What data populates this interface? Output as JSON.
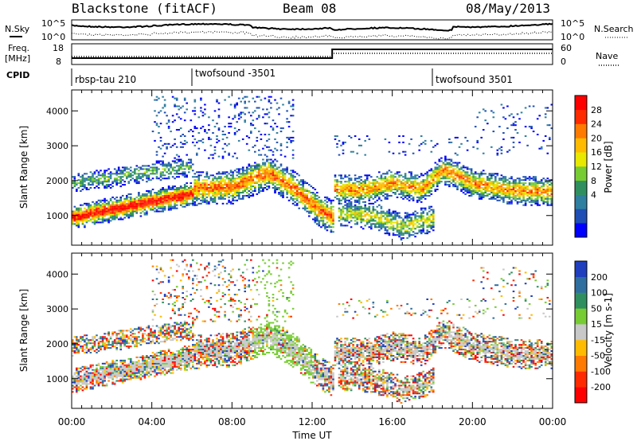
{
  "header": {
    "title": "Blackstone (fitACF)",
    "beam": "Beam 08",
    "date": "08/May/2013"
  },
  "top_panel": {
    "nsky_label": "N.Sky",
    "nsearch_label": "N.Search",
    "freq_label_1": "Freq.",
    "freq_label_2": "[MHz]",
    "nave_label": "Nave",
    "cpid_label": "CPID",
    "noise_ticks_left": [
      "10^5",
      "10^0"
    ],
    "noise_ticks_right": [
      "10^5",
      "10^0"
    ],
    "freq_ticks": [
      "18",
      "8"
    ],
    "nave_ticks": [
      "60",
      "0"
    ],
    "cpid_segments": [
      {
        "label": "rbsp-tau 210",
        "start_hour": 0
      },
      {
        "label": "twofsound -3501",
        "start_hour": 6
      },
      {
        "label": "twofsound 3501",
        "start_hour": 18
      }
    ]
  },
  "chart_data": [
    {
      "type": "heatmap",
      "name": "power",
      "ylabel": "Slant Range [km]",
      "y_ticks": [
        "1000",
        "2000",
        "3000",
        "4000"
      ],
      "ylim": [
        150,
        4600
      ],
      "xlim": [
        0,
        24
      ],
      "colorbar_label": "Power [dB]",
      "colorbar_ticks": [
        "28",
        "24",
        "20",
        "16",
        "12",
        "8",
        "4"
      ],
      "colorbar_colors": [
        "#0000ff",
        "#1f4fb4",
        "#2f7fa0",
        "#2f8f5f",
        "#77cc33",
        "#e8e800",
        "#ffbb00",
        "#ff7a00",
        "#ff2a00",
        "#ff0000"
      ],
      "bands": [
        {
          "t": [
            0.0,
            2.0,
            4.0,
            6.0
          ],
          "r": [
            920,
            1150,
            1380,
            1600
          ],
          "w": 160,
          "level": 0.85
        },
        {
          "t": [
            0.0,
            2.0,
            4.0,
            6.0
          ],
          "r": [
            1900,
            2050,
            2250,
            2350
          ],
          "w": 140,
          "level": 0.35
        },
        {
          "t": [
            6.0,
            8.0,
            9.8,
            11.0,
            12.3,
            13.0
          ],
          "r": [
            1750,
            1800,
            2200,
            1800,
            1150,
            950
          ],
          "w": 220,
          "level": 0.7
        },
        {
          "t": [
            13.0,
            14.5,
            16.0,
            17.5,
            18.5,
            20.0,
            22.0,
            24.0
          ],
          "r": [
            1750,
            1700,
            1900,
            1750,
            2300,
            1900,
            1700,
            1650
          ],
          "w": 190,
          "level": 0.65
        },
        {
          "t": [
            13.2,
            15.0,
            16.5,
            18.0
          ],
          "r": [
            1050,
            950,
            650,
            900
          ],
          "w": 180,
          "level": 0.5
        }
      ]
    },
    {
      "type": "heatmap",
      "name": "velocity",
      "ylabel": "Slant Range [km]",
      "y_ticks": [
        "1000",
        "2000",
        "3000",
        "4000"
      ],
      "ylim": [
        150,
        4600
      ],
      "xlim": [
        0,
        24
      ],
      "colorbar_label": "Velocity [m s-1]",
      "colorbar_ticks": [
        "200",
        "100",
        "50",
        "15",
        "-15",
        "-50",
        "-100",
        "-200"
      ],
      "colorbar_colors": [
        "#1f3fbf",
        "#2f6f9f",
        "#2f8f5f",
        "#77cc33",
        "#c8c8c8",
        "#ffbb00",
        "#ff7a00",
        "#ff2a00",
        "#ff0000"
      ],
      "x_ticks": [
        "00:00",
        "04:00",
        "08:00",
        "12:00",
        "16:00",
        "20:00",
        "00:00"
      ],
      "x_tick_hours": [
        0,
        4,
        8,
        12,
        16,
        20,
        24
      ],
      "xlabel": "Time UT"
    }
  ]
}
